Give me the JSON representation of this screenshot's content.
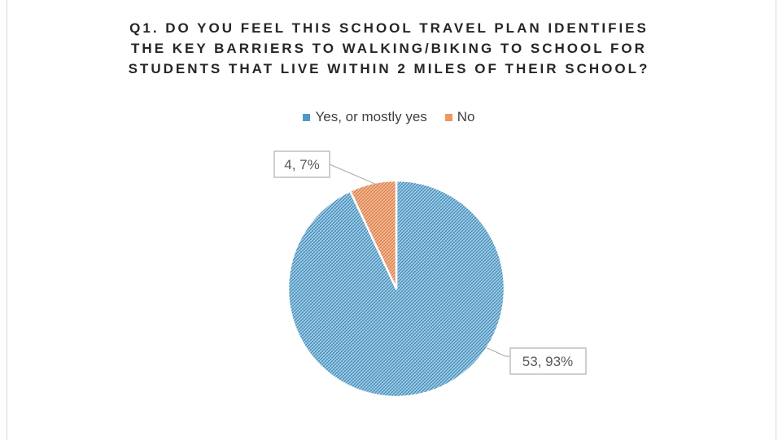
{
  "chart_data": {
    "type": "pie",
    "title_lines": [
      "Q1. DO YOU FEEL THIS SCHOOL TRAVEL PLAN IDENTIFIES",
      "THE KEY BARRIERS TO WALKING/BIKING TO SCHOOL FOR",
      "STUDENTS THAT LIVE WITHIN 2 MILES OF THEIR SCHOOL?"
    ],
    "legend_position": "top",
    "categories": [
      "Yes, or mostly yes",
      "No"
    ],
    "values": [
      53,
      4
    ],
    "percent_labels": [
      "93%",
      "7%"
    ],
    "data_labels": [
      "53, 93%",
      "4, 7%"
    ],
    "colors": [
      "#4e9ac5",
      "#ef9661"
    ]
  }
}
